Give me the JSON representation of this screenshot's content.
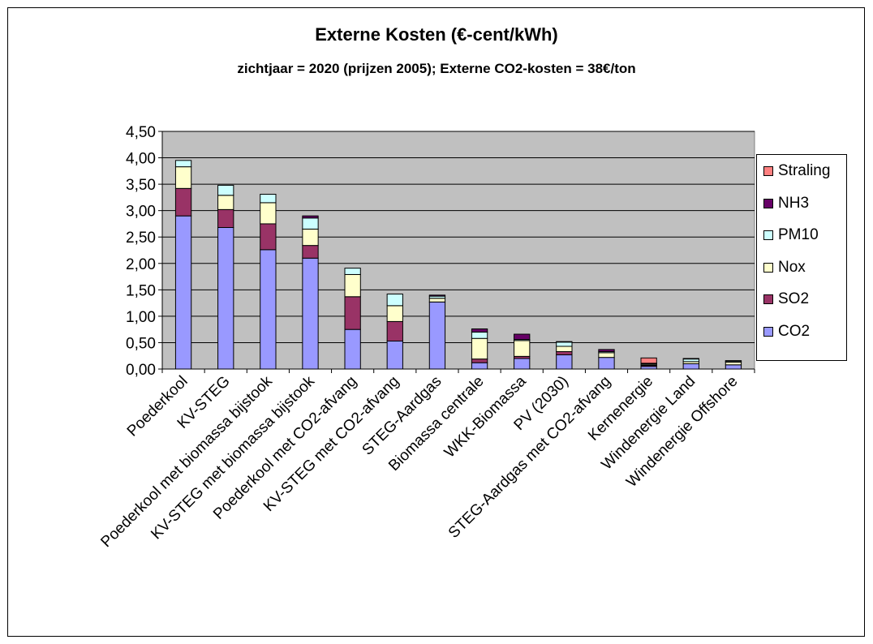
{
  "chart_data": {
    "type": "bar",
    "stacked": true,
    "title": "Externe Kosten (€-cent/kWh)",
    "subtitle": "zichtjaar = 2020 (prijzen 2005); Externe CO2-kosten = 38€/ton",
    "xlabel": "",
    "ylabel": "",
    "ylim": [
      0,
      4.5
    ],
    "yticks": [
      "0,00",
      "0,50",
      "1,00",
      "1,50",
      "2,00",
      "2,50",
      "3,00",
      "3,50",
      "4,00",
      "4,50"
    ],
    "grid": true,
    "legend_position": "right",
    "categories": [
      "Poederkool",
      "KV-STEG",
      "Poederkool met biomassa bijstook",
      "KV-STEG met biomassa bijstook",
      "Poederkool met CO2-afvang",
      "KV-STEG met CO2-afvang",
      "STEG-Aardgas",
      "Biomassa centrale",
      "WKK-Biomassa",
      "PV (2030)",
      "STEG-Aardgas met CO2-afvang",
      "Kernenergie",
      "Windenergie Land",
      "Windenergie Offshore"
    ],
    "series": [
      {
        "name": "CO2",
        "color": "#9999ff",
        "values": [
          2.9,
          2.68,
          2.26,
          2.1,
          0.75,
          0.53,
          1.27,
          0.12,
          0.2,
          0.27,
          0.22,
          0.05,
          0.1,
          0.08
        ]
      },
      {
        "name": "SO2",
        "color": "#993366",
        "values": [
          0.52,
          0.34,
          0.49,
          0.24,
          0.62,
          0.37,
          0.0,
          0.07,
          0.04,
          0.06,
          0.0,
          0.02,
          0.0,
          0.0
        ]
      },
      {
        "name": "Nox",
        "color": "#ffffcc",
        "values": [
          0.41,
          0.27,
          0.4,
          0.31,
          0.42,
          0.3,
          0.07,
          0.39,
          0.3,
          0.1,
          0.09,
          0.02,
          0.04,
          0.05
        ]
      },
      {
        "name": "PM10",
        "color": "#ccffff",
        "values": [
          0.12,
          0.19,
          0.16,
          0.21,
          0.12,
          0.22,
          0.04,
          0.12,
          0.02,
          0.08,
          0.02,
          0.01,
          0.05,
          0.02
        ]
      },
      {
        "name": "NH3",
        "color": "#660066",
        "values": [
          0.0,
          0.0,
          0.0,
          0.04,
          0.0,
          0.0,
          0.02,
          0.06,
          0.1,
          0.01,
          0.04,
          0.01,
          0.01,
          0.01
        ]
      },
      {
        "name": "Straling",
        "color": "#ff8080",
        "values": [
          0.0,
          0.0,
          0.0,
          0.0,
          0.0,
          0.0,
          0.0,
          0.0,
          0.0,
          0.0,
          0.0,
          0.1,
          0.0,
          0.0
        ]
      }
    ],
    "legend_order": [
      "Straling",
      "NH3",
      "PM10",
      "Nox",
      "SO2",
      "CO2"
    ],
    "plot_background": "#c0c0c0"
  }
}
